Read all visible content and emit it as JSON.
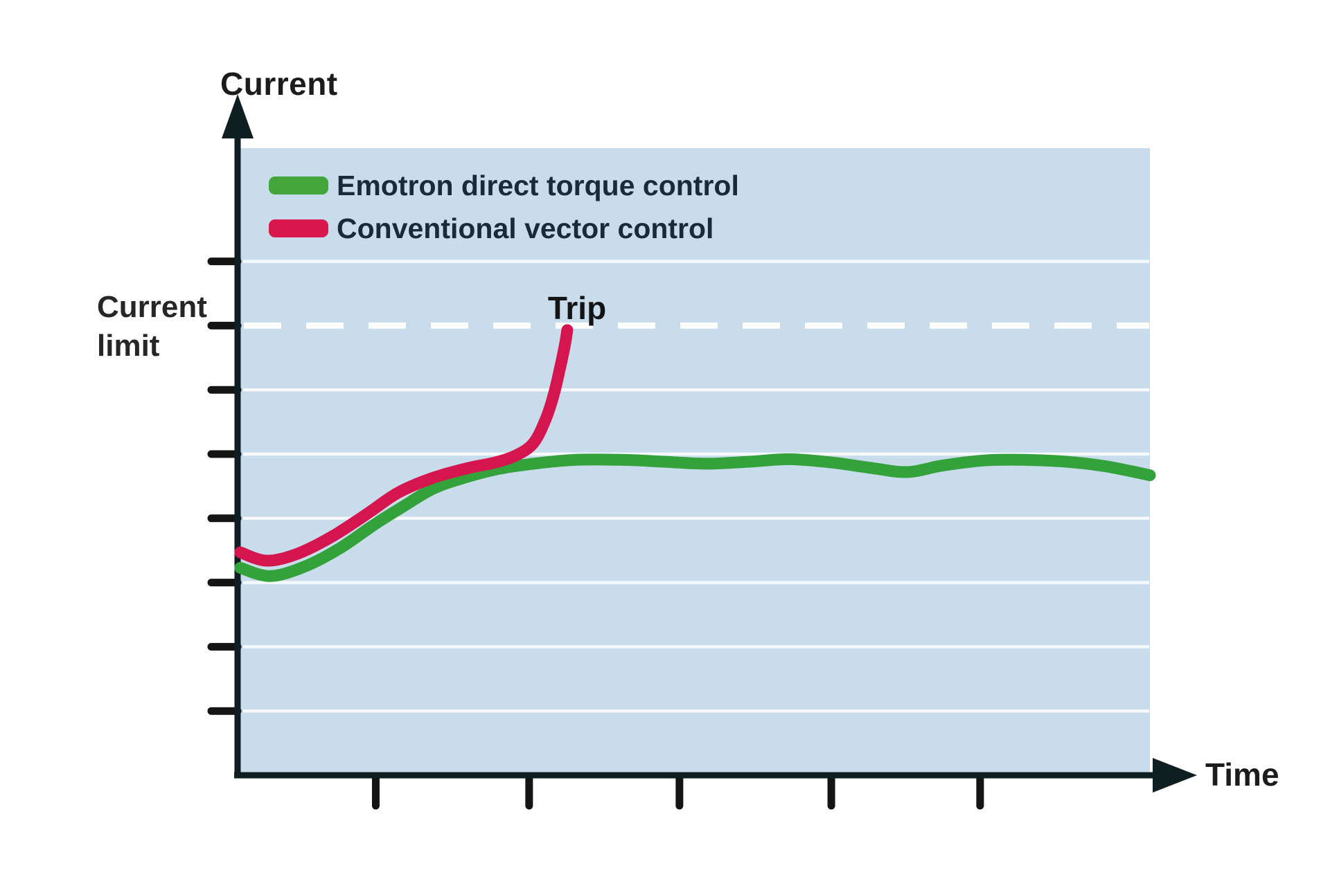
{
  "axis_titles": {
    "y": "Current",
    "x": "Time"
  },
  "annotations": {
    "current_limit": "Current limit",
    "trip": "Trip"
  },
  "legend": [
    {
      "label": "Emotron direct torque control",
      "color": "#43a63c"
    },
    {
      "label": "Conventional vector control",
      "color": "#d8174d"
    }
  ],
  "colors": {
    "plot_background": "#c9dcec",
    "gridline": "rgba(255,255,255,0.82)",
    "dashed_limit_line": "#ffffff",
    "axis": "#0f1e20",
    "tick": "#141414"
  },
  "chart_data": {
    "type": "line",
    "title": "",
    "xlabel": "Time",
    "ylabel": "Current",
    "axes_unlabeled": true,
    "units_note": "no numeric labels on axes; 1 unit = one tick/gridline spacing, y=0 at time axis",
    "xlim": [
      0,
      6.01
    ],
    "ylim": [
      0,
      9.76
    ],
    "x_ticks": [
      0.91,
      1.92,
      2.91,
      3.91,
      4.89
    ],
    "y_ticks": [
      1,
      2,
      3,
      4,
      5,
      6,
      7,
      8
    ],
    "grid": true,
    "current_limit_level": 7.0,
    "trip_point": [
      2.21,
      7.27
    ],
    "legend_position": "top-left inside plot",
    "series": [
      {
        "name": "Emotron direct torque control",
        "color": "#33a23b",
        "points": [
          [
            0.018,
            3.23
          ],
          [
            0.214,
            3.1
          ],
          [
            0.443,
            3.25
          ],
          [
            0.671,
            3.53
          ],
          [
            0.899,
            3.9
          ],
          [
            1.081,
            4.17
          ],
          [
            1.287,
            4.46
          ],
          [
            1.492,
            4.63
          ],
          [
            1.72,
            4.77
          ],
          [
            1.948,
            4.85
          ],
          [
            2.222,
            4.91
          ],
          [
            2.541,
            4.91
          ],
          [
            2.815,
            4.88
          ],
          [
            3.088,
            4.85
          ],
          [
            3.362,
            4.88
          ],
          [
            3.636,
            4.92
          ],
          [
            3.91,
            4.87
          ],
          [
            4.183,
            4.78
          ],
          [
            4.411,
            4.72
          ],
          [
            4.639,
            4.82
          ],
          [
            4.913,
            4.9
          ],
          [
            5.187,
            4.91
          ],
          [
            5.461,
            4.88
          ],
          [
            5.689,
            4.82
          ],
          [
            5.871,
            4.74
          ],
          [
            6.008,
            4.67
          ]
        ]
      },
      {
        "name": "Conventional vector control",
        "color": "#d5164e",
        "points": [
          [
            0.018,
            3.47
          ],
          [
            0.192,
            3.34
          ],
          [
            0.397,
            3.45
          ],
          [
            0.625,
            3.72
          ],
          [
            0.853,
            4.07
          ],
          [
            1.058,
            4.4
          ],
          [
            1.287,
            4.63
          ],
          [
            1.515,
            4.78
          ],
          [
            1.697,
            4.87
          ],
          [
            1.834,
            4.98
          ],
          [
            1.948,
            5.17
          ],
          [
            2.03,
            5.55
          ],
          [
            2.085,
            5.95
          ],
          [
            2.13,
            6.41
          ],
          [
            2.158,
            6.73
          ],
          [
            2.171,
            6.93
          ]
        ]
      }
    ]
  }
}
